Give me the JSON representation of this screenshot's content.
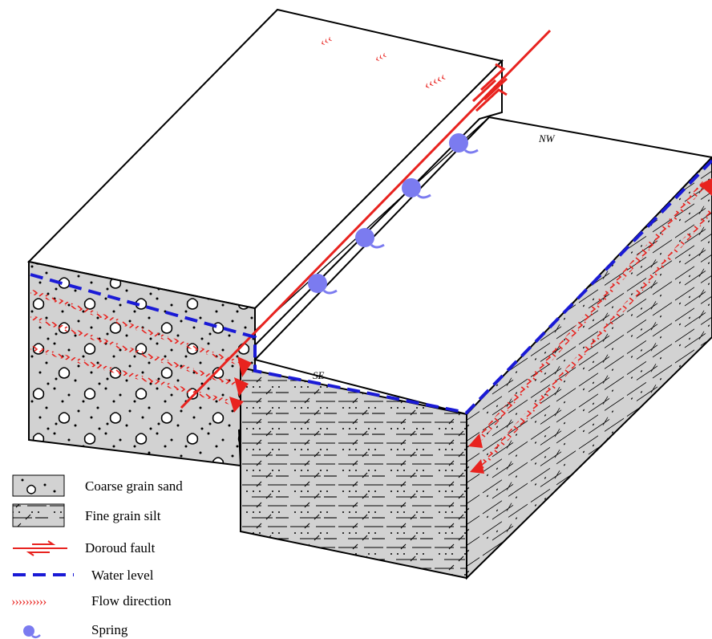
{
  "orientation": {
    "nw": "NW",
    "se": "SE"
  },
  "legend": {
    "items": [
      {
        "key": "sand",
        "label": "Coarse grain sand",
        "icon": "coarse-sand-swatch"
      },
      {
        "key": "silt",
        "label": "Fine grain silt",
        "icon": "fine-silt-swatch"
      },
      {
        "key": "fault",
        "label": "Doroud fault",
        "icon": "fault-line-icon"
      },
      {
        "key": "water",
        "label": "Water level",
        "icon": "dashed-line-icon"
      },
      {
        "key": "flow",
        "label": "Flow direction",
        "icon": "chevron-arrows-icon"
      },
      {
        "key": "spring",
        "label": "Spring",
        "icon": "spring-icon"
      }
    ]
  },
  "colors": {
    "fault_red": "#e8231f",
    "water_blue": "#1a1ad6",
    "spring_blue": "#7b7bf0",
    "rock_gray": "#d2d2d2",
    "outline": "#000000"
  }
}
